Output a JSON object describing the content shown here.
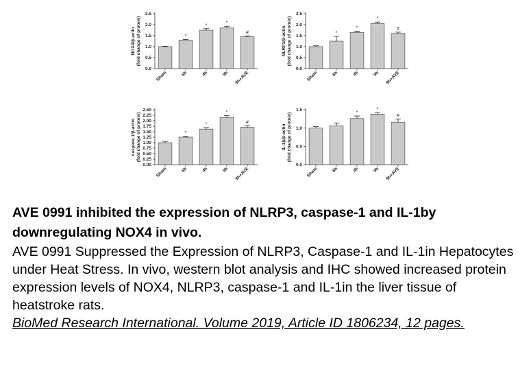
{
  "chart_data": [
    {
      "type": "bar",
      "ylabel": "NOX4/β-actin",
      "ylabel2": "(fold change of protein)",
      "categories": [
        "Sham",
        "6h",
        "4h",
        "9h",
        "9h+AVE"
      ],
      "values": [
        1.0,
        1.3,
        1.75,
        1.85,
        1.45
      ],
      "errors": [
        0.02,
        0.03,
        0.07,
        0.08,
        0.04
      ],
      "markers": [
        "",
        "*",
        "*",
        "*",
        "#"
      ],
      "ylim": [
        0,
        2.5
      ],
      "ticks": [
        "0.0",
        "0.5",
        "1.0",
        "1.5",
        "2.0",
        "2.5"
      ]
    },
    {
      "type": "bar",
      "ylabel": "NLRP3/β-actin",
      "ylabel2": "(fold change of protein)",
      "categories": [
        "Sham",
        "6h",
        "4h",
        "9h",
        "9h+AVE"
      ],
      "values": [
        1.0,
        1.25,
        1.65,
        2.05,
        1.6
      ],
      "errors": [
        0.04,
        0.22,
        0.05,
        0.07,
        0.06
      ],
      "markers": [
        "",
        "*",
        "*",
        "*",
        "#"
      ],
      "ylim": [
        0,
        2.5
      ],
      "ticks": [
        "0.0",
        "0.5",
        "1.0",
        "1.5",
        "2.0",
        "2.5"
      ]
    },
    {
      "type": "bar",
      "ylabel": "caspase 1/β-actin",
      "ylabel2": "(fold change of protein)",
      "categories": [
        "Sham",
        "6h",
        "4h",
        "9h",
        "9h+AVE"
      ],
      "values": [
        1.0,
        1.25,
        1.62,
        2.15,
        1.7
      ],
      "errors": [
        0.06,
        0.05,
        0.07,
        0.09,
        0.08
      ],
      "markers": [
        "",
        "*",
        "*",
        "*",
        "#"
      ],
      "ylim": [
        0,
        2.5
      ],
      "ticks": [
        "0.00",
        "0.25",
        "0.50",
        "0.75",
        "1.00",
        "1.25",
        "1.50",
        "1.75",
        "2.00",
        "2.25",
        "2.50"
      ]
    },
    {
      "type": "bar",
      "ylabel": "IL-1β/β-actin",
      "ylabel2": "(fold change of protein)",
      "categories": [
        "Sham",
        "6h",
        "4h",
        "9h",
        "9h+AVE"
      ],
      "values": [
        1.0,
        1.06,
        1.26,
        1.38,
        1.16
      ],
      "errors": [
        0.04,
        0.08,
        0.07,
        0.04,
        0.09
      ],
      "markers": [
        "",
        "",
        "*",
        "*",
        "#"
      ],
      "ylim": [
        0,
        1.5
      ],
      "ticks": [
        "0.0",
        "0.5",
        "1.0",
        "1.5"
      ]
    }
  ],
  "colors": {
    "bar": "#c9c9c9",
    "axis": "#333333"
  },
  "caption": {
    "title": "AVE 0991 inhibited the expression of NLRP3, caspase-1 and IL-1by downregulating NOX4 in vivo.",
    "body": "AVE 0991 Suppressed the Expression of NLRP3, Caspase-1 and IL-1in Hepatocytes under Heat Stress. In vivo, western blot analysis and IHC showed increased protein expression levels of NOX4, NLRP3, caspase-1 and IL-1in the liver tissue of heatstroke rats.",
    "citation": "BioMed Research International. Volume 2019, Article ID 1806234, 12 pages."
  }
}
